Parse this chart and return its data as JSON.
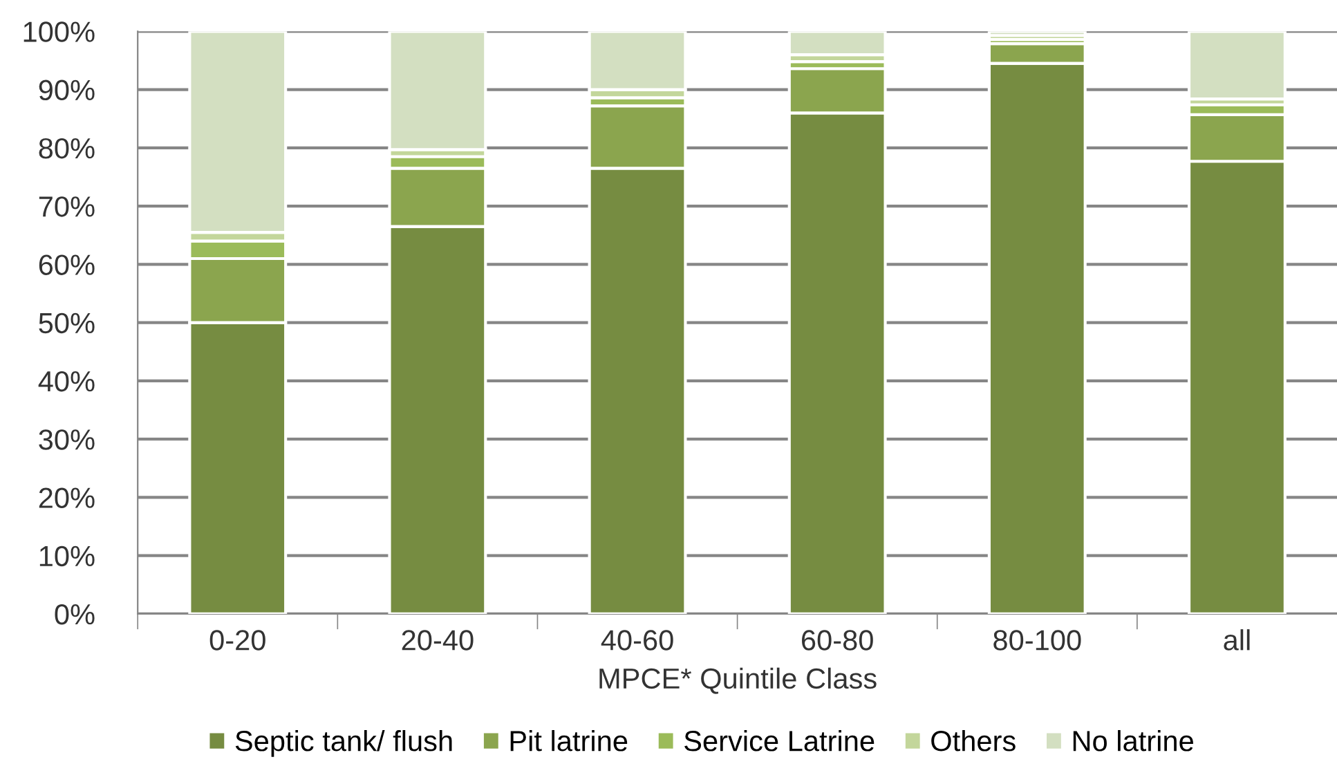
{
  "chart_data": {
    "type": "bar",
    "stacked": true,
    "xlabel": "MPCE* Quintile Class",
    "categories": [
      "0-20",
      "20-40",
      "40-60",
      "60-80",
      "80-100",
      "all"
    ],
    "series": [
      {
        "name": "Septic tank/ flush",
        "color": "#768c41",
        "values": [
          50,
          66.5,
          76.5,
          86,
          94.5,
          77.7
        ]
      },
      {
        "name": "Pit latrine",
        "color": "#8ba54e",
        "values": [
          11,
          10,
          10.7,
          7.6,
          3.4,
          8
        ]
      },
      {
        "name": "Service Latrine",
        "color": "#9bbb59",
        "values": [
          3,
          2,
          1.4,
          1.2,
          0.7,
          1.7
        ]
      },
      {
        "name": "Others",
        "color": "#c3d69b",
        "values": [
          1.5,
          1.2,
          1.4,
          1.2,
          0.7,
          1
        ]
      },
      {
        "name": "No latrine",
        "color": "#d3dfc1",
        "values": [
          34.5,
          20.3,
          10,
          4,
          0.7,
          11.6
        ]
      }
    ],
    "ylim": [
      0,
      100
    ],
    "yticks": [
      {
        "value": 0,
        "label": "0%"
      },
      {
        "value": 10,
        "label": "10%"
      },
      {
        "value": 20,
        "label": "20%"
      },
      {
        "value": 30,
        "label": "30%"
      },
      {
        "value": 40,
        "label": "40%"
      },
      {
        "value": 50,
        "label": "50%"
      },
      {
        "value": 60,
        "label": "60%"
      },
      {
        "value": 70,
        "label": "70%"
      },
      {
        "value": 80,
        "label": "80%"
      },
      {
        "value": 90,
        "label": "90%"
      },
      {
        "value": 100,
        "label": "100%"
      }
    ],
    "grid": "y",
    "legend": "bottom"
  }
}
